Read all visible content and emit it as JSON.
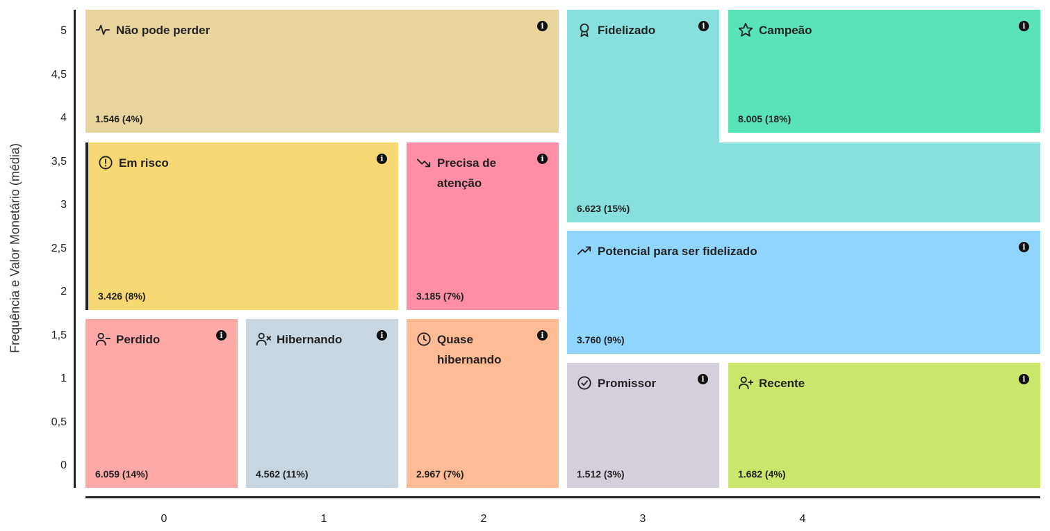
{
  "chart_data": {
    "type": "table",
    "title": "",
    "xlabel": "",
    "ylabel": "Frequência e Valor Monetário (média)",
    "x_ticks": [
      "0",
      "1",
      "2",
      "3",
      "4"
    ],
    "y_ticks": [
      "5",
      "4,5",
      "4",
      "3,5",
      "3",
      "2,5",
      "2",
      "1,5",
      "1",
      "0,5",
      "0"
    ],
    "segments": [
      {
        "name": "Não pode perder",
        "count": "1.546 (4%)",
        "value": 1546,
        "percent": 4,
        "color": "#E7D59D",
        "icon": "activity-icon"
      },
      {
        "name": "Fidelizado",
        "count": "6.623 (15%)",
        "value": 6623,
        "percent": 15,
        "color": "#87E0DC",
        "icon": "award-icon"
      },
      {
        "name": "Campeão",
        "count": "8.005 (18%)",
        "value": 8005,
        "percent": 18,
        "color": "#58E3B8",
        "icon": "star-icon"
      },
      {
        "name": "Em risco",
        "count": "3.426 (8%)",
        "value": 3426,
        "percent": 8,
        "color": "#F7D872",
        "icon": "alert-circle-icon",
        "selected": true
      },
      {
        "name": "Precisa de atenção",
        "count": "3.185 (7%)",
        "value": 3185,
        "percent": 7,
        "color": "#FF8EA6",
        "icon": "trending-down-icon"
      },
      {
        "name": "Potencial para ser fidelizado",
        "count": "3.760 (9%)",
        "value": 3760,
        "percent": 9,
        "color": "#90D5FD",
        "icon": "trending-up-icon"
      },
      {
        "name": "Perdido",
        "count": "6.059 (14%)",
        "value": 6059,
        "percent": 14,
        "color": "#FFA8A8",
        "icon": "user-minus-icon"
      },
      {
        "name": "Hibernando",
        "count": "4.562 (11%)",
        "value": 4562,
        "percent": 11,
        "color": "#C8D6E1",
        "icon": "user-x-icon"
      },
      {
        "name": "Quase hibernando",
        "count": "2.967 (7%)",
        "value": 2967,
        "percent": 7,
        "color": "#FFBB96",
        "icon": "clock-icon"
      },
      {
        "name": "Promissor",
        "count": "1.512 (3%)",
        "value": 1512,
        "percent": 3,
        "color": "#D6CFDB",
        "icon": "check-circle-icon"
      },
      {
        "name": "Recente",
        "count": "1.682 (4%)",
        "value": 1682,
        "percent": 4,
        "color": "#CBE76B",
        "icon": "user-plus-icon"
      }
    ]
  }
}
